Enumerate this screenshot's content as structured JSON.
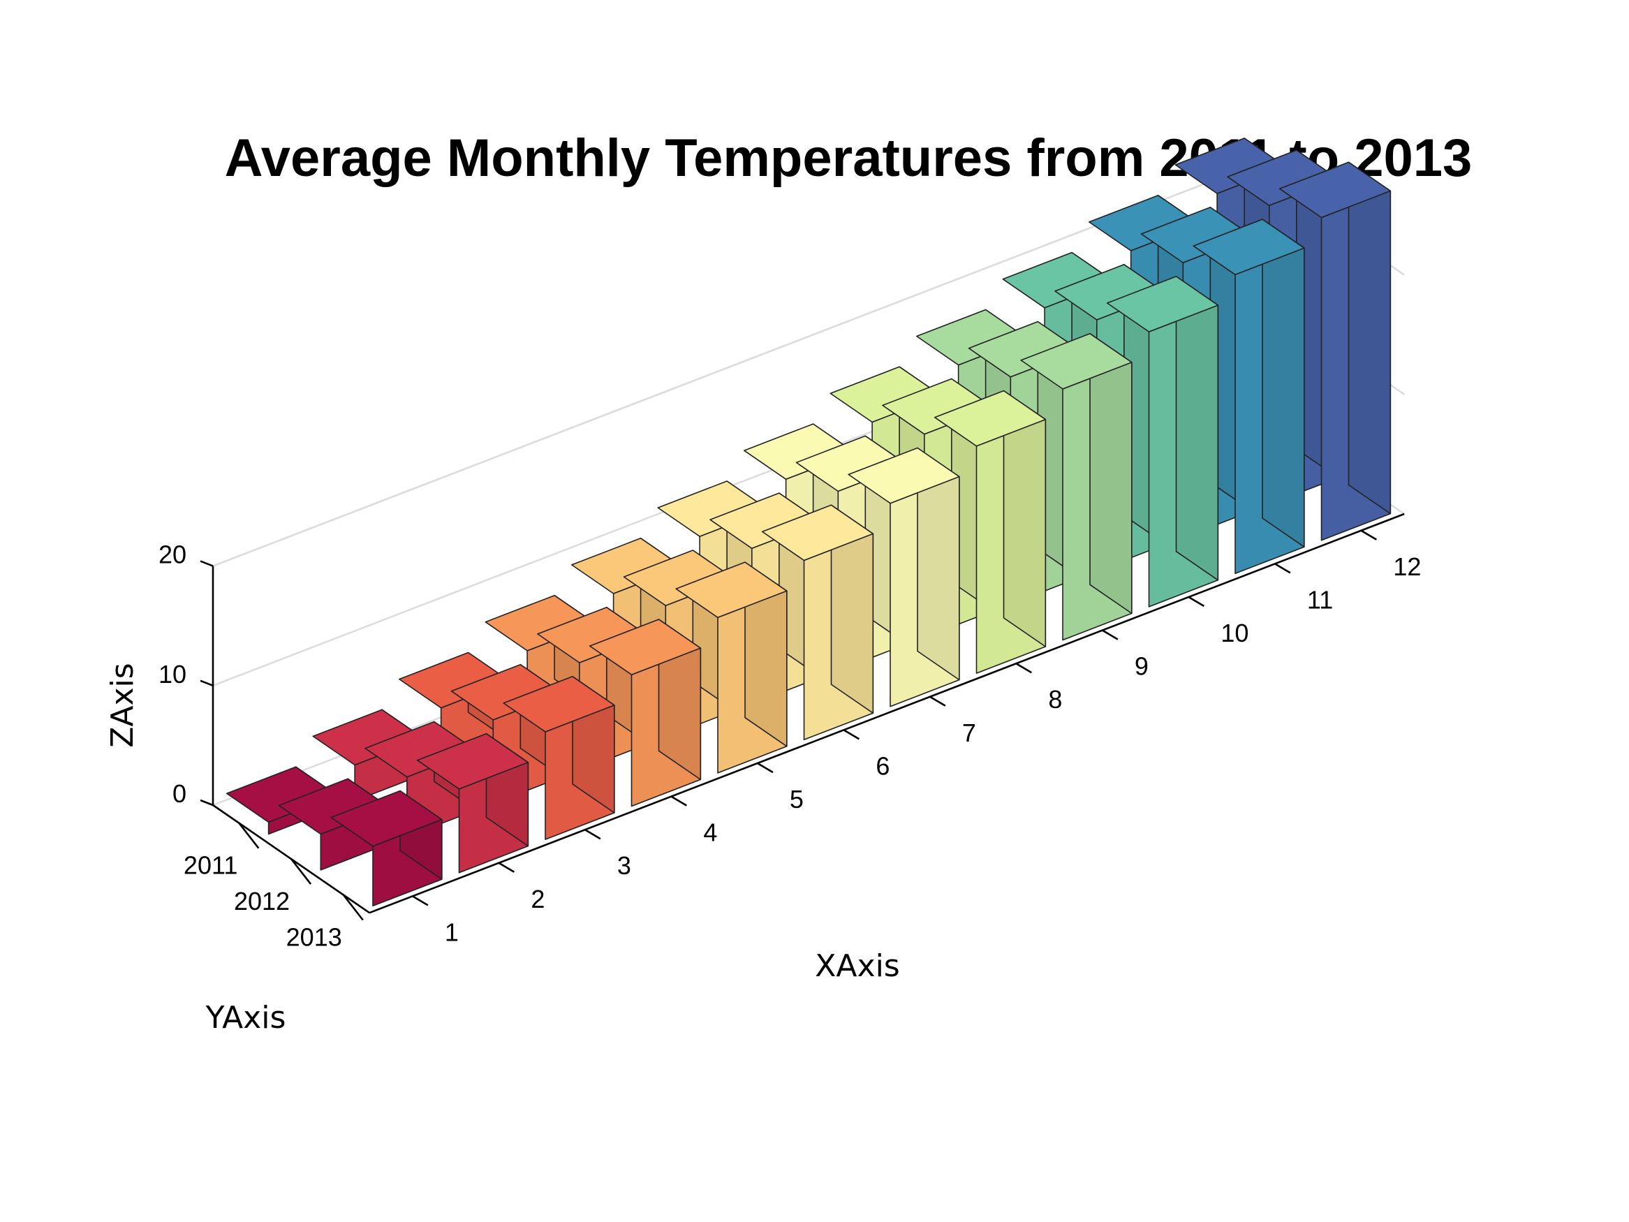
{
  "chart_data": {
    "type": "bar3d",
    "title": "Average Monthly Temperatures from 2011 to 2013",
    "xlabel": "XAxis",
    "ylabel": "YAxis",
    "zlabel": "ZAxis",
    "x_ticks": [
      "1",
      "2",
      "3",
      "4",
      "5",
      "6",
      "7",
      "8",
      "9",
      "10",
      "11",
      "12"
    ],
    "y_ticks": [
      "2011",
      "2012",
      "2013"
    ],
    "z_ticks": [
      "0",
      "10",
      "20"
    ],
    "zlim": [
      0,
      20
    ],
    "grid": "on",
    "categories": [
      "1",
      "2",
      "3",
      "4",
      "5",
      "6",
      "7",
      "8",
      "9",
      "10",
      "11",
      "12"
    ],
    "series": [
      {
        "name": "2011",
        "values": [
          1,
          3,
          5,
          7,
          9,
          11,
          13,
          15,
          17,
          19,
          21,
          23
        ]
      },
      {
        "name": "2012",
        "values": [
          3,
          5,
          7,
          9,
          11,
          13,
          15,
          17,
          19,
          21,
          23,
          25
        ]
      },
      {
        "name": "2013",
        "values": [
          5,
          7,
          9,
          11,
          13,
          15,
          17,
          19,
          21,
          23,
          25,
          27
        ]
      }
    ],
    "colors": [
      "#a50f43",
      "#cd3149",
      "#ea5e46",
      "#f69659",
      "#fbc879",
      "#fde89b",
      "#fafab3",
      "#dcf29a",
      "#a8dc9f",
      "#6ac5a4",
      "#3a92b6",
      "#4863a9"
    ]
  }
}
